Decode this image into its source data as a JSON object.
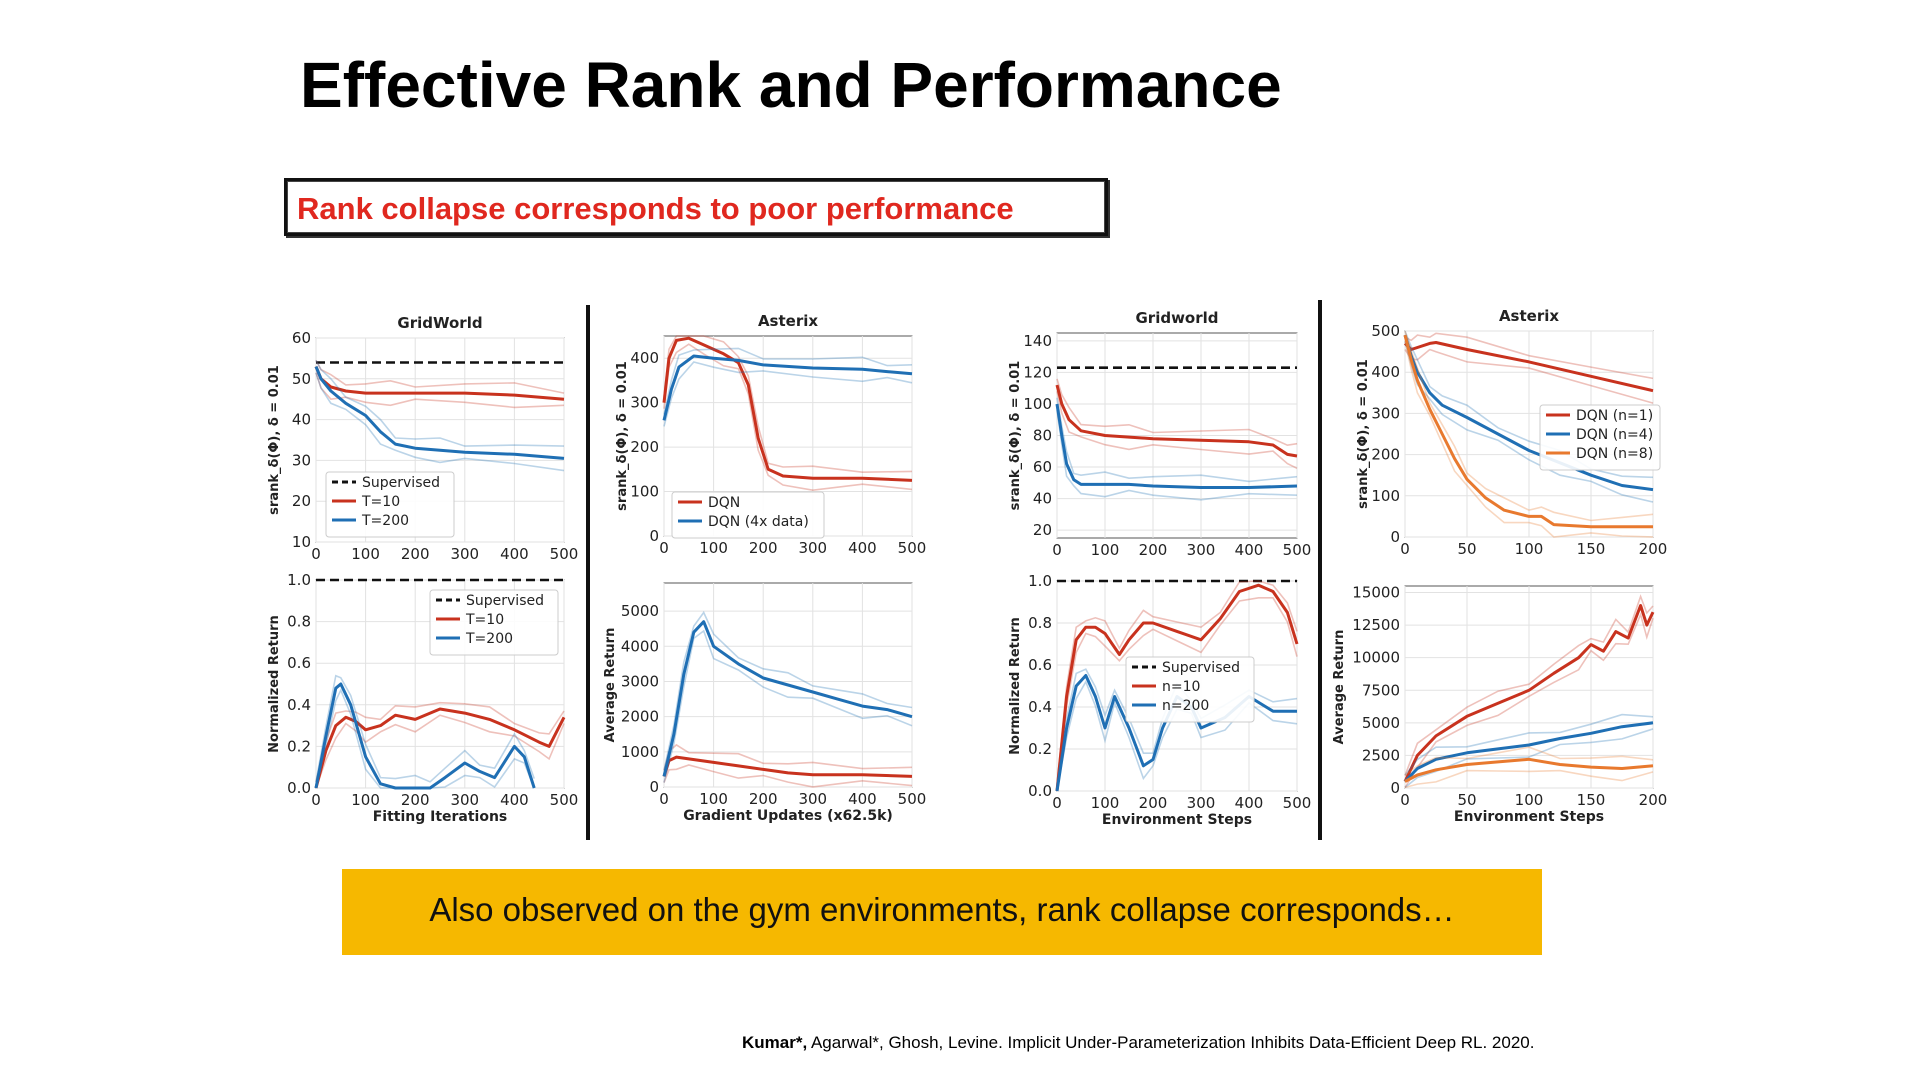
{
  "slide": {
    "title": "Effective Rank and Performance",
    "callout": "Rank collapse corresponds to poor performance",
    "banner": "Also observed on the gym environments, rank collapse corresponds…",
    "citation_authors_bold": "Kumar*,",
    "citation_rest": " Agarwal*, Ghosh, Levine. Implicit Under-Parameterization Inhibits Data-Efficient Deep RL. 2020."
  },
  "colors": {
    "red": "#c8321e",
    "blue": "#1f6fb4",
    "orange": "#e8792e",
    "black": "#111111",
    "highlight": "#f6b800",
    "callout_text": "#e0281f"
  },
  "chart_data": [
    {
      "id": "gridworld-rank",
      "type": "line",
      "title": "GridWorld",
      "xlabel": "",
      "ylabel": "srank_δ(Φ), δ = 0.01",
      "xlim": [
        0,
        500
      ],
      "ylim": [
        10,
        60
      ],
      "xticks": [
        0,
        100,
        200,
        300,
        400,
        500
      ],
      "yticks": [
        10,
        20,
        30,
        40,
        50,
        60
      ],
      "legend": "lower-left",
      "series": [
        {
          "name": "Supervised",
          "color": "#111111",
          "dashed": true,
          "x": [
            0,
            500
          ],
          "y": [
            54,
            54
          ]
        },
        {
          "name": "T=10",
          "color": "#c8321e",
          "x": [
            0,
            10,
            30,
            60,
            100,
            150,
            200,
            300,
            400,
            500
          ],
          "y": [
            53,
            50,
            48,
            47,
            46.5,
            46.5,
            46.5,
            46.5,
            46,
            45
          ]
        },
        {
          "name": "T=200",
          "color": "#1f6fb4",
          "x": [
            0,
            10,
            30,
            60,
            100,
            130,
            160,
            200,
            250,
            300,
            400,
            500
          ],
          "y": [
            53,
            50,
            47,
            44,
            41,
            37,
            34,
            33,
            32.5,
            32,
            31.5,
            30.5
          ]
        }
      ]
    },
    {
      "id": "asterix-rank",
      "type": "line",
      "title": "Asterix",
      "xlabel": "",
      "ylabel": "srank_δ(Φ), δ = 0.01",
      "xlim": [
        0,
        500
      ],
      "ylim": [
        0,
        450
      ],
      "xticks": [
        0,
        100,
        200,
        300,
        400,
        500
      ],
      "yticks": [
        0,
        100,
        200,
        300,
        400
      ],
      "legend": "lower-left",
      "series": [
        {
          "name": "DQN",
          "color": "#c8321e",
          "x": [
            0,
            10,
            25,
            50,
            80,
            120,
            150,
            170,
            190,
            210,
            240,
            300,
            400,
            500
          ],
          "y": [
            300,
            400,
            440,
            445,
            430,
            410,
            390,
            340,
            220,
            150,
            135,
            130,
            130,
            125
          ]
        },
        {
          "name": "DQN (4x data)",
          "color": "#1f6fb4",
          "x": [
            0,
            15,
            30,
            60,
            100,
            150,
            200,
            300,
            400,
            450,
            500
          ],
          "y": [
            260,
            330,
            380,
            405,
            400,
            395,
            385,
            378,
            375,
            370,
            365
          ]
        }
      ]
    },
    {
      "id": "gridworld-rank-nstep",
      "type": "line",
      "title": "Gridworld",
      "xlabel": "",
      "ylabel": "srank_δ(Φ), δ = 0.01",
      "xlim": [
        0,
        500
      ],
      "ylim": [
        15,
        145
      ],
      "xticks": [
        0,
        100,
        200,
        300,
        400,
        500
      ],
      "yticks": [
        20,
        40,
        60,
        80,
        100,
        120,
        140
      ],
      "series": [
        {
          "name": "Supervised",
          "color": "#111111",
          "dashed": true,
          "x": [
            0,
            500
          ],
          "y": [
            123,
            123
          ]
        },
        {
          "name": "n=10",
          "color": "#c8321e",
          "x": [
            0,
            10,
            25,
            50,
            100,
            150,
            200,
            300,
            400,
            450,
            480,
            500
          ],
          "y": [
            112,
            100,
            90,
            83,
            80,
            79,
            78,
            77,
            76,
            74,
            68,
            67
          ]
        },
        {
          "name": "n=200",
          "color": "#1f6fb4",
          "x": [
            0,
            10,
            20,
            35,
            50,
            100,
            150,
            200,
            300,
            400,
            500
          ],
          "y": [
            100,
            80,
            62,
            52,
            49,
            49,
            49,
            48,
            47,
            47,
            48
          ]
        }
      ]
    },
    {
      "id": "asterix-rank-nstep",
      "type": "line",
      "title": "Asterix",
      "xlabel": "",
      "ylabel": "srank_δ(Φ), δ = 0.01",
      "xlim": [
        0,
        200
      ],
      "ylim": [
        0,
        500
      ],
      "xticks": [
        0,
        50,
        100,
        150,
        200
      ],
      "yticks": [
        0,
        100,
        200,
        300,
        400,
        500
      ],
      "legend": "center-right",
      "series": [
        {
          "name": "DQN (n=1)",
          "color": "#c8321e",
          "x": [
            0,
            5,
            10,
            20,
            25,
            50,
            100,
            150,
            200
          ],
          "y": [
            470,
            455,
            460,
            470,
            472,
            455,
            425,
            390,
            355
          ]
        },
        {
          "name": "DQN (n=4)",
          "color": "#1f6fb4",
          "x": [
            0,
            5,
            10,
            20,
            30,
            50,
            75,
            100,
            125,
            150,
            175,
            200
          ],
          "y": [
            490,
            440,
            400,
            350,
            320,
            290,
            250,
            210,
            180,
            150,
            125,
            115
          ]
        },
        {
          "name": "DQN (n=8)",
          "color": "#e8792e",
          "x": [
            0,
            5,
            10,
            20,
            30,
            40,
            50,
            65,
            80,
            100,
            110,
            120,
            150,
            175,
            200
          ],
          "y": [
            490,
            430,
            380,
            310,
            250,
            190,
            140,
            95,
            65,
            50,
            50,
            30,
            25,
            25,
            25
          ]
        }
      ]
    },
    {
      "id": "gridworld-return",
      "type": "line",
      "title": "",
      "xlabel": "Fitting Iterations",
      "ylabel": "Normalized Return",
      "xlim": [
        0,
        500
      ],
      "ylim": [
        0,
        1.0
      ],
      "xticks": [
        0,
        100,
        200,
        300,
        400,
        500
      ],
      "yticks": [
        0.0,
        0.2,
        0.4,
        0.6,
        0.8,
        1.0
      ],
      "legend": "top-right",
      "series": [
        {
          "name": "Supervised",
          "color": "#111111",
          "dashed": true,
          "x": [
            0,
            500
          ],
          "y": [
            1.0,
            1.0
          ]
        },
        {
          "name": "T=10",
          "color": "#c8321e",
          "x": [
            0,
            20,
            40,
            60,
            80,
            100,
            130,
            160,
            200,
            250,
            300,
            350,
            400,
            450,
            470,
            500
          ],
          "y": [
            0.0,
            0.18,
            0.3,
            0.34,
            0.32,
            0.28,
            0.3,
            0.35,
            0.33,
            0.38,
            0.36,
            0.33,
            0.28,
            0.22,
            0.2,
            0.34
          ]
        },
        {
          "name": "T=200",
          "color": "#1f6fb4",
          "x": [
            0,
            20,
            40,
            50,
            70,
            100,
            130,
            160,
            200,
            230,
            260,
            300,
            330,
            360,
            400,
            420,
            440
          ],
          "y": [
            0.0,
            0.25,
            0.48,
            0.5,
            0.4,
            0.15,
            0.02,
            0.0,
            0.0,
            0.0,
            0.05,
            0.12,
            0.08,
            0.05,
            0.2,
            0.15,
            0.0
          ]
        }
      ]
    },
    {
      "id": "asterix-return",
      "type": "line",
      "title": "",
      "xlabel": "Gradient Updates (x62.5k)",
      "ylabel": "Average Return",
      "xlim": [
        0,
        500
      ],
      "ylim": [
        0,
        5800
      ],
      "xticks": [
        0,
        100,
        200,
        300,
        400,
        500
      ],
      "yticks": [
        0,
        1000,
        2000,
        3000,
        4000,
        5000
      ],
      "series": [
        {
          "name": "DQN",
          "color": "#c8321e",
          "x": [
            0,
            10,
            25,
            50,
            100,
            150,
            200,
            250,
            300,
            400,
            500
          ],
          "y": [
            300,
            750,
            850,
            800,
            700,
            600,
            500,
            400,
            350,
            350,
            300
          ]
        },
        {
          "name": "DQN (4x data)",
          "color": "#1f6fb4",
          "x": [
            0,
            20,
            40,
            60,
            80,
            100,
            150,
            200,
            250,
            300,
            350,
            400,
            450,
            500
          ],
          "y": [
            300,
            1500,
            3200,
            4400,
            4700,
            4000,
            3500,
            3100,
            2900,
            2700,
            2500,
            2300,
            2200,
            2000
          ]
        }
      ]
    },
    {
      "id": "gridworld-return-nstep",
      "type": "line",
      "title": "",
      "xlabel": "Environment Steps",
      "ylabel": "Normalized Return",
      "xlim": [
        0,
        500
      ],
      "ylim": [
        0,
        1.0
      ],
      "xticks": [
        0,
        100,
        200,
        300,
        400,
        500
      ],
      "yticks": [
        0.0,
        0.2,
        0.4,
        0.6,
        0.8,
        1.0
      ],
      "legend": "center",
      "series": [
        {
          "name": "Supervised",
          "color": "#111111",
          "dashed": true,
          "x": [
            0,
            500
          ],
          "y": [
            1.0,
            1.0
          ]
        },
        {
          "name": "n=10",
          "color": "#c8321e",
          "x": [
            0,
            20,
            40,
            60,
            80,
            100,
            130,
            150,
            180,
            200,
            250,
            300,
            340,
            380,
            420,
            450,
            480,
            500
          ],
          "y": [
            0.0,
            0.45,
            0.72,
            0.78,
            0.78,
            0.75,
            0.65,
            0.72,
            0.8,
            0.8,
            0.76,
            0.72,
            0.82,
            0.95,
            0.98,
            0.95,
            0.85,
            0.7
          ]
        },
        {
          "name": "n=200",
          "color": "#1f6fb4",
          "x": [
            0,
            20,
            40,
            60,
            80,
            100,
            120,
            150,
            180,
            200,
            220,
            250,
            280,
            300,
            350,
            400,
            450,
            500
          ],
          "y": [
            0.0,
            0.3,
            0.5,
            0.55,
            0.45,
            0.3,
            0.45,
            0.3,
            0.12,
            0.15,
            0.3,
            0.45,
            0.4,
            0.3,
            0.35,
            0.45,
            0.38,
            0.38
          ]
        }
      ]
    },
    {
      "id": "asterix-return-nstep",
      "type": "line",
      "title": "",
      "xlabel": "Environment Steps",
      "ylabel": "Average Return",
      "xlim": [
        0,
        200
      ],
      "ylim": [
        0,
        15500
      ],
      "xticks": [
        0,
        50,
        100,
        150,
        200
      ],
      "yticks": [
        0,
        2500,
        5000,
        7500,
        10000,
        12500,
        15000
      ],
      "series": [
        {
          "name": "DQN (n=1)",
          "color": "#c8321e",
          "x": [
            0,
            5,
            10,
            25,
            50,
            75,
            100,
            120,
            140,
            150,
            160,
            170,
            180,
            190,
            195,
            200
          ],
          "y": [
            500,
            1500,
            2500,
            4000,
            5500,
            6500,
            7500,
            8800,
            10000,
            11000,
            10500,
            12000,
            11500,
            14000,
            12500,
            13500
          ]
        },
        {
          "name": "DQN (n=4)",
          "color": "#1f6fb4",
          "x": [
            0,
            10,
            25,
            50,
            75,
            100,
            125,
            150,
            175,
            200
          ],
          "y": [
            500,
            1500,
            2200,
            2700,
            3000,
            3300,
            3800,
            4200,
            4700,
            5000
          ]
        },
        {
          "name": "DQN (n=8)",
          "color": "#e8792e",
          "x": [
            0,
            10,
            25,
            50,
            75,
            100,
            125,
            150,
            175,
            200
          ],
          "y": [
            500,
            1000,
            1400,
            1800,
            2000,
            2200,
            1800,
            1600,
            1500,
            1700
          ]
        }
      ]
    }
  ]
}
